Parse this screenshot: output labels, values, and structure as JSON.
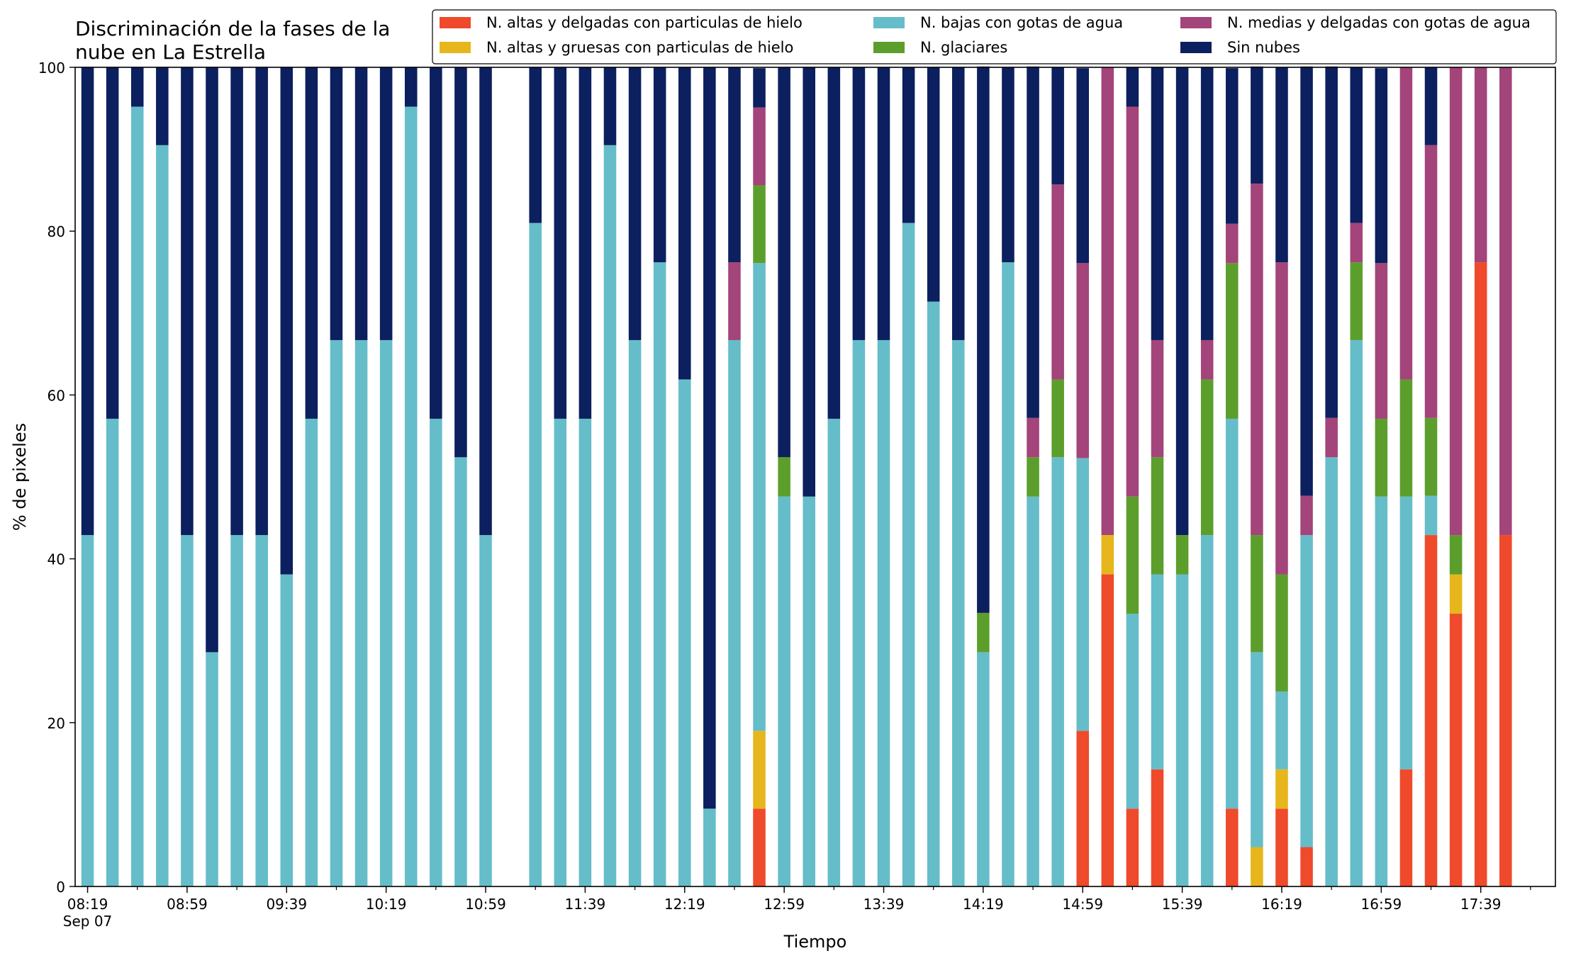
{
  "chart_data": {
    "type": "bar",
    "stacked": true,
    "title_lines": [
      "Discriminación de la fases de la",
      "nube en La Estrella"
    ],
    "xlabel": "Tiempo",
    "ylabel": "% de pixeles",
    "ylim": [
      0,
      100
    ],
    "yticks": [
      0,
      20,
      40,
      60,
      80,
      100
    ],
    "x_range": [
      "08:14",
      "18:09"
    ],
    "bar_interval_minutes": 10,
    "grid": false,
    "legend_position": "top-right",
    "xtick_labels": [
      {
        "time": "08:19",
        "label": "08:19",
        "sublabel": "Sep 07"
      },
      {
        "time": "08:59",
        "label": "08:59"
      },
      {
        "time": "09:39",
        "label": "09:39"
      },
      {
        "time": "10:19",
        "label": "10:19"
      },
      {
        "time": "10:59",
        "label": "10:59"
      },
      {
        "time": "11:39",
        "label": "11:39"
      },
      {
        "time": "12:19",
        "label": "12:19"
      },
      {
        "time": "12:59",
        "label": "12:59"
      },
      {
        "time": "13:39",
        "label": "13:39"
      },
      {
        "time": "14:19",
        "label": "14:19"
      },
      {
        "time": "14:59",
        "label": "14:59"
      },
      {
        "time": "15:39",
        "label": "15:39"
      },
      {
        "time": "16:19",
        "label": "16:19"
      },
      {
        "time": "16:59",
        "label": "16:59"
      },
      {
        "time": "17:39",
        "label": "17:39"
      }
    ],
    "x": [
      "08:19",
      "08:29",
      "08:39",
      "08:49",
      "08:59",
      "09:09",
      "09:19",
      "09:29",
      "09:39",
      "09:49",
      "09:59",
      "10:09",
      "10:19",
      "10:29",
      "10:39",
      "10:49",
      "10:59",
      "11:09",
      "11:19",
      "11:29",
      "11:39",
      "11:49",
      "11:59",
      "12:09",
      "12:19",
      "12:29",
      "12:39",
      "12:49",
      "12:59",
      "13:09",
      "13:19",
      "13:29",
      "13:39",
      "13:49",
      "13:59",
      "14:09",
      "14:19",
      "14:29",
      "14:39",
      "14:49",
      "14:59",
      "15:09",
      "15:19",
      "15:29",
      "15:39",
      "15:49",
      "15:59",
      "16:09",
      "16:19",
      "16:29",
      "16:39",
      "16:49",
      "16:59",
      "17:09",
      "17:19",
      "17:29",
      "17:39",
      "17:49"
    ],
    "series": [
      {
        "name": "N. altas y delgadas con particulas de hielo",
        "color": "#ef4a2b",
        "values": [
          0,
          0,
          0,
          0,
          0,
          0,
          0,
          0,
          0,
          0,
          0,
          0,
          0,
          0,
          0,
          0,
          0,
          null,
          0,
          0,
          0,
          0,
          0,
          0,
          0,
          0,
          0,
          9.5,
          0,
          0,
          0,
          0,
          0,
          0,
          0,
          0,
          0,
          0,
          0,
          0,
          19,
          38.1,
          9.5,
          14.3,
          0,
          0,
          9.5,
          0,
          9.5,
          4.8,
          0,
          0,
          0,
          14.3,
          42.9,
          33.3,
          76.2,
          42.9
        ]
      },
      {
        "name": "N. altas y gruesas con particulas de hielo",
        "color": "#e6b61c",
        "values": [
          0,
          0,
          0,
          0,
          0,
          0,
          0,
          0,
          0,
          0,
          0,
          0,
          0,
          0,
          0,
          0,
          0,
          null,
          0,
          0,
          0,
          0,
          0,
          0,
          0,
          0,
          0,
          9.5,
          0,
          0,
          0,
          0,
          0,
          0,
          0,
          0,
          0,
          0,
          0,
          0,
          0,
          4.8,
          0,
          0,
          0,
          0,
          0,
          4.8,
          4.8,
          0,
          0,
          0,
          0,
          0,
          0,
          4.8,
          0,
          0
        ]
      },
      {
        "name": "N. bajas con gotas de agua",
        "color": "#65bdc9",
        "values": [
          42.9,
          57.1,
          95.2,
          90.5,
          42.9,
          28.6,
          42.9,
          42.9,
          38.1,
          57.1,
          66.7,
          66.7,
          66.7,
          95.2,
          57.1,
          52.4,
          42.9,
          null,
          81,
          57.1,
          57.1,
          90.5,
          66.7,
          76.2,
          61.9,
          9.5,
          66.7,
          57.1,
          47.6,
          47.6,
          57.1,
          66.7,
          66.7,
          81,
          71.4,
          66.7,
          28.6,
          76.2,
          47.6,
          52.4,
          33.3,
          0,
          23.8,
          23.8,
          38.1,
          42.9,
          47.6,
          23.8,
          9.5,
          38.1,
          52.4,
          66.7,
          47.6,
          33.3,
          4.8,
          0,
          0,
          0
        ]
      },
      {
        "name": "N. glaciares",
        "color": "#5c9e2c",
        "values": [
          0,
          0,
          0,
          0,
          0,
          0,
          0,
          0,
          0,
          0,
          0,
          0,
          0,
          0,
          0,
          0,
          0,
          null,
          0,
          0,
          0,
          0,
          0,
          0,
          0,
          0,
          0,
          9.5,
          4.8,
          0,
          0,
          0,
          0,
          0,
          0,
          0,
          4.8,
          0,
          4.8,
          9.5,
          0,
          0,
          14.3,
          14.3,
          4.8,
          19,
          19,
          14.3,
          14.3,
          0,
          0,
          9.5,
          9.5,
          14.3,
          9.5,
          4.8,
          0,
          0
        ]
      },
      {
        "name": "N. medias y delgadas con gotas de agua",
        "color": "#a3447a",
        "values": [
          0,
          0,
          0,
          0,
          0,
          0,
          0,
          0,
          0,
          0,
          0,
          0,
          0,
          0,
          0,
          0,
          0,
          null,
          0,
          0,
          0,
          0,
          0,
          0,
          0,
          0,
          9.5,
          9.5,
          0,
          0,
          0,
          0,
          0,
          0,
          0,
          0,
          0,
          0,
          4.8,
          23.8,
          23.8,
          57.1,
          47.6,
          14.3,
          0,
          4.8,
          4.8,
          42.9,
          38.1,
          4.8,
          4.8,
          4.8,
          19,
          38.1,
          33.3,
          57.1,
          23.8,
          57.1
        ]
      },
      {
        "name": "Sin nubes",
        "color": "#0c1f5e",
        "values": [
          57.1,
          42.9,
          4.8,
          9.5,
          57.1,
          71.4,
          57.1,
          57.1,
          61.9,
          42.9,
          33.3,
          33.3,
          33.3,
          4.8,
          42.9,
          47.6,
          57.1,
          null,
          19,
          42.9,
          42.9,
          9.5,
          33.3,
          23.8,
          38.1,
          90.5,
          23.8,
          4.8,
          47.6,
          52.4,
          42.9,
          33.3,
          33.3,
          19,
          28.6,
          33.3,
          66.7,
          23.8,
          42.9,
          14.3,
          23.8,
          0,
          4.8,
          33.3,
          57.1,
          33.3,
          19,
          14.3,
          23.8,
          52.4,
          42.9,
          19,
          23.8,
          0,
          9.5,
          0,
          0,
          0
        ]
      }
    ]
  }
}
